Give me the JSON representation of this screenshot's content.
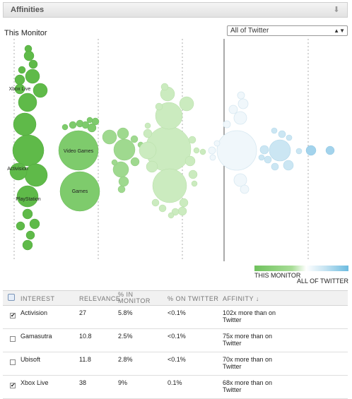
{
  "panel": {
    "title": "Affinities",
    "menu_icon": "download-arrow-icon"
  },
  "monitor_title": "This Monitor",
  "compare_select": {
    "value": "All of Twitter"
  },
  "bubble_labels": [
    "Xbox Live",
    "Video Games",
    "Activision",
    "Games",
    "PlayStation"
  ],
  "legend": {
    "left_label": "THIS MONITOR",
    "right_label": "ALL OF TWITTER",
    "left_color": "#6fc25d",
    "right_color": "#6bbbe0"
  },
  "table": {
    "headers": {
      "interest": "INTEREST",
      "relevance": "RELEVANCE",
      "pct_monitor": "% IN MONITOR",
      "pct_twitter": "% ON TWITTER",
      "affinity": "AFFINITY ↓"
    },
    "rows": [
      {
        "checked": true,
        "interest": "Activision",
        "relevance": "27",
        "pct_monitor": "5.8%",
        "pct_twitter": "<0.1%",
        "affinity": "102x more than on Twitter"
      },
      {
        "checked": false,
        "interest": "Gamasutra",
        "relevance": "10.8",
        "pct_monitor": "2.5%",
        "pct_twitter": "<0.1%",
        "affinity": "75x more than on Twitter"
      },
      {
        "checked": false,
        "interest": "Ubisoft",
        "relevance": "11.8",
        "pct_monitor": "2.8%",
        "pct_twitter": "<0.1%",
        "affinity": "70x more than on Twitter"
      },
      {
        "checked": true,
        "interest": "Xbox Live",
        "relevance": "38",
        "pct_monitor": "9%",
        "pct_twitter": "0.1%",
        "affinity": "68x more than on Twitter"
      }
    ]
  }
}
